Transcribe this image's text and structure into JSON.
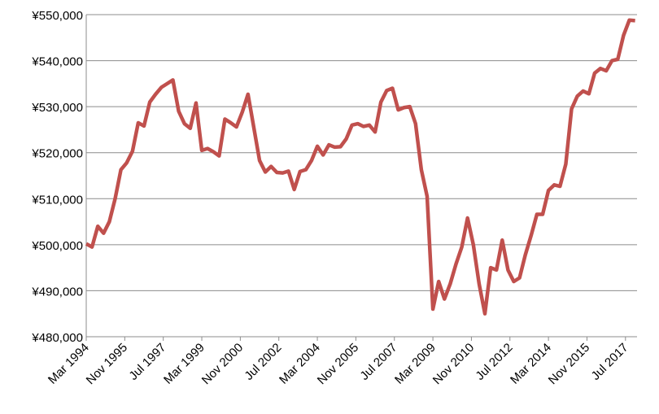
{
  "chart_data": {
    "type": "line",
    "x": [
      "Mar 1994",
      "Jun 1994",
      "Sep 1994",
      "Dec 1994",
      "Mar 1995",
      "Jun 1995",
      "Sep 1995",
      "Dec 1995",
      "Mar 1996",
      "Jun 1996",
      "Sep 1996",
      "Dec 1996",
      "Mar 1997",
      "Jun 1997",
      "Sep 1997",
      "Dec 1997",
      "Mar 1998",
      "Jun 1998",
      "Sep 1998",
      "Dec 1998",
      "Mar 1999",
      "Jun 1999",
      "Sep 1999",
      "Dec 1999",
      "Mar 2000",
      "Jun 2000",
      "Sep 2000",
      "Dec 2000",
      "Mar 2001",
      "Jun 2001",
      "Sep 2001",
      "Dec 2001",
      "Mar 2002",
      "Jun 2002",
      "Sep 2002",
      "Dec 2002",
      "Mar 2003",
      "Jun 2003",
      "Sep 2003",
      "Dec 2003",
      "Mar 2004",
      "Jun 2004",
      "Sep 2004",
      "Dec 2004",
      "Mar 2005",
      "Jun 2005",
      "Sep 2005",
      "Dec 2005",
      "Mar 2006",
      "Jun 2006",
      "Sep 2006",
      "Dec 2006",
      "Mar 2007",
      "Jun 2007",
      "Sep 2007",
      "Dec 2007",
      "Mar 2008",
      "Jun 2008",
      "Sep 2008",
      "Dec 2008",
      "Mar 2009",
      "Jun 2009",
      "Sep 2009",
      "Dec 2009",
      "Mar 2010",
      "Jun 2010",
      "Sep 2010",
      "Dec 2010",
      "Mar 2011",
      "Jun 2011",
      "Sep 2011",
      "Dec 2011",
      "Mar 2012",
      "Jun 2012",
      "Sep 2012",
      "Dec 2012",
      "Mar 2013",
      "Jun 2013",
      "Sep 2013",
      "Dec 2013",
      "Mar 2014",
      "Jun 2014",
      "Sep 2014",
      "Dec 2014",
      "Mar 2015",
      "Jun 2015",
      "Sep 2015",
      "Dec 2015",
      "Mar 2016",
      "Jun 2016",
      "Sep 2016",
      "Dec 2016",
      "Mar 2017",
      "Jun 2017",
      "Sep 2017",
      "Dec 2017"
    ],
    "series": [
      {
        "color": "#c0504d",
        "values": [
          500200,
          499500,
          504000,
          502500,
          505000,
          510000,
          516300,
          517800,
          520300,
          526500,
          525800,
          531000,
          532700,
          534200,
          535000,
          535800,
          529000,
          526300,
          525300,
          530800,
          520500,
          520900,
          520200,
          519300,
          527300,
          526500,
          525600,
          528800,
          532700,
          525500,
          518300,
          515800,
          517000,
          515700,
          515600,
          516000,
          512000,
          515900,
          516300,
          518300,
          521400,
          519500,
          521700,
          521200,
          521300,
          523000,
          526000,
          526300,
          525700,
          526000,
          524500,
          531000,
          533500,
          534000,
          529300,
          529800,
          530000,
          526300,
          516300,
          510500,
          486000,
          492000,
          488200,
          491500,
          495800,
          499500,
          505800,
          500000,
          491500,
          485000,
          495000,
          494500,
          501000,
          494500,
          492000,
          492800,
          497800,
          502000,
          506600,
          506600,
          511800,
          513000,
          512700,
          517500,
          529500,
          532300,
          533400,
          532800,
          537300,
          538300,
          537800,
          540000,
          540300,
          545500,
          548800,
          548700
        ]
      }
    ],
    "xticks": [
      "Mar 1994",
      "Nov 1995",
      "Jul 1997",
      "Mar 1999",
      "Nov 2000",
      "Jul 2002",
      "Mar 2004",
      "Nov 2005",
      "Jul 2007",
      "Mar 2009",
      "Nov 2010",
      "Jul 2012",
      "Mar 2014",
      "Nov 2015",
      "Jul 2017"
    ],
    "xlim": [
      "Mar 1994",
      "Jan 2018"
    ],
    "ylim": [
      480000,
      550000
    ],
    "yticks": [
      {
        "value": 480000,
        "label": "¥480,000"
      },
      {
        "value": 490000,
        "label": "¥490,000"
      },
      {
        "value": 500000,
        "label": "¥500,000"
      },
      {
        "value": 510000,
        "label": "¥510,000"
      },
      {
        "value": 520000,
        "label": "¥520,000"
      },
      {
        "value": 530000,
        "label": "¥530,000"
      },
      {
        "value": 540000,
        "label": "¥540,000"
      },
      {
        "value": 550000,
        "label": "¥550,000"
      }
    ],
    "grid": true
  }
}
